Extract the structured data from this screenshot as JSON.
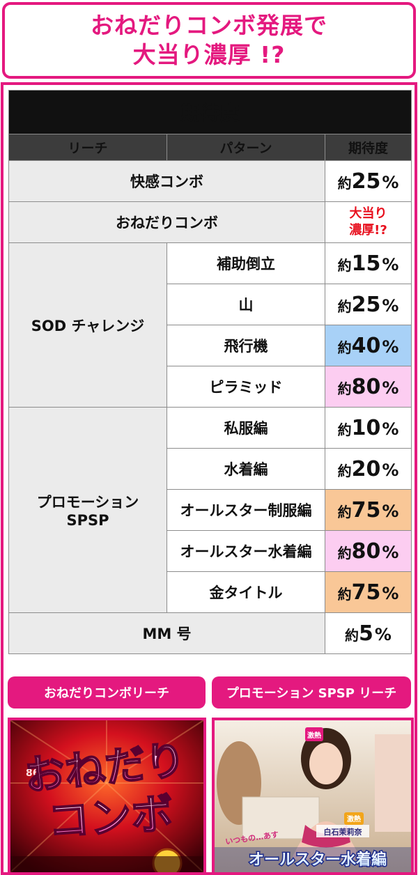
{
  "header": {
    "line1": "おねだりコンボ発展で",
    "line2": "大当り濃厚 !?"
  },
  "table": {
    "title": "期待度",
    "columns": [
      "リーチ",
      "パターン",
      "期待度"
    ],
    "prefix": "約",
    "percent": "%",
    "rows": {
      "kaikan": {
        "reach": "快感コンボ",
        "value": "25"
      },
      "onedari": {
        "reach": "おねだりコンボ",
        "value_line1": "大当り",
        "value_line2": "濃厚!?"
      },
      "sod": {
        "reach": "SOD チャレンジ",
        "patterns": [
          {
            "label": "補助倒立",
            "value": "15"
          },
          {
            "label": "山",
            "value": "25"
          },
          {
            "label": "飛行機",
            "value": "40",
            "highlight": "#a8d1f7"
          },
          {
            "label": "ピラミッド",
            "value": "80",
            "highlight": "#fccdf1"
          }
        ]
      },
      "promo": {
        "reach_line1": "プロモーション",
        "reach_line2": "SPSP",
        "patterns": [
          {
            "label": "私服編",
            "value": "10"
          },
          {
            "label": "水着編",
            "value": "20"
          },
          {
            "label": "オールスター制服編",
            "value": "75",
            "highlight": "#f9c797"
          },
          {
            "label": "オールスター水着編",
            "value": "80",
            "highlight": "#fccdf1"
          },
          {
            "label": "金タイトル",
            "value": "75",
            "highlight": "#f9c797"
          }
        ]
      },
      "mm": {
        "reach": "MM 号",
        "value": "5"
      }
    }
  },
  "bottom": {
    "left_label": "おねだりコンボリーチ",
    "right_label": "プロモーション SPSP リーチ",
    "left_image": {
      "logo_line1": "おねだり",
      "logo_line2": "コンボ",
      "small_number": "86"
    },
    "right_image": {
      "caption": "オールスター水着編",
      "small_text": "いつもの…あす",
      "name_tag": "白石茉莉奈",
      "badge1": "激熱",
      "badge2": "激熱"
    }
  },
  "colors": {
    "brand_pink": "#e4197f",
    "highlight_blue": "#a8d1f7",
    "highlight_pink": "#fccdf1",
    "highlight_orange": "#f9c797",
    "value_red": "#e8101e"
  }
}
